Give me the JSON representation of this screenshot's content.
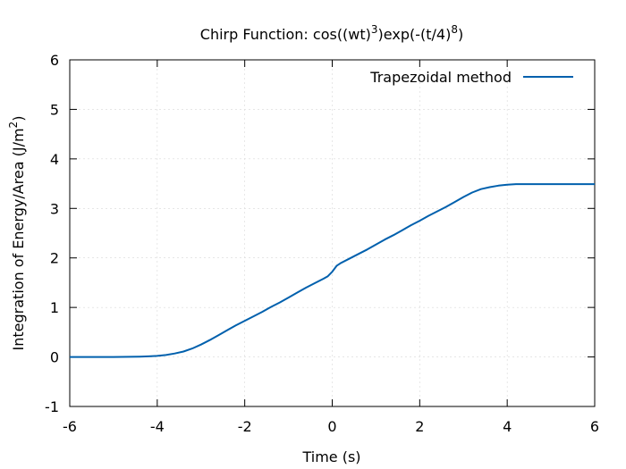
{
  "chart_data": {
    "type": "line",
    "title_parts": {
      "base1": "Chirp Function: cos((wt)",
      "sup1": "3",
      "base2": ")exp(-(t/4)",
      "sup2": "8",
      "base3": ")"
    },
    "xlabel": "Time (s)",
    "ylabel_parts": {
      "base": "Integration of Energy/Area (J/m",
      "sup": "2",
      "end": ")"
    },
    "xlim": [
      -6,
      6
    ],
    "ylim": [
      -1,
      6
    ],
    "xticks": [
      -6,
      -4,
      -2,
      0,
      2,
      4,
      6
    ],
    "yticks": [
      -1,
      0,
      1,
      2,
      3,
      4,
      5,
      6
    ],
    "xtick_labels": [
      "-6",
      "-4",
      "-2",
      "0",
      "2",
      "4",
      "6"
    ],
    "ytick_labels": [
      "-1",
      "0",
      "1",
      "2",
      "3",
      "4",
      "5",
      "6"
    ],
    "grid": true,
    "legend_position": "top-right",
    "series_color": "#0060ad",
    "series": [
      {
        "name": "Trapezoidal method",
        "x": [
          -6,
          -5.5,
          -5,
          -4.8,
          -4.6,
          -4.4,
          -4.2,
          -4.0,
          -3.8,
          -3.6,
          -3.4,
          -3.2,
          -3.0,
          -2.8,
          -2.6,
          -2.4,
          -2.2,
          -2.0,
          -1.8,
          -1.6,
          -1.4,
          -1.2,
          -1.0,
          -0.8,
          -0.6,
          -0.4,
          -0.2,
          -0.1,
          0.0,
          0.1,
          0.2,
          0.4,
          0.6,
          0.8,
          1.0,
          1.2,
          1.4,
          1.6,
          1.8,
          2.0,
          2.2,
          2.4,
          2.6,
          2.8,
          3.0,
          3.2,
          3.4,
          3.6,
          3.8,
          4.0,
          4.2,
          4.5,
          5.0,
          5.5,
          6.0
        ],
        "y": [
          0,
          0,
          0,
          0.001,
          0.003,
          0.006,
          0.012,
          0.022,
          0.04,
          0.07,
          0.11,
          0.17,
          0.25,
          0.34,
          0.44,
          0.54,
          0.64,
          0.73,
          0.82,
          0.91,
          1.01,
          1.1,
          1.2,
          1.3,
          1.4,
          1.49,
          1.58,
          1.63,
          1.72,
          1.84,
          1.9,
          1.99,
          2.08,
          2.17,
          2.27,
          2.37,
          2.46,
          2.56,
          2.66,
          2.75,
          2.85,
          2.94,
          3.03,
          3.13,
          3.23,
          3.32,
          3.39,
          3.43,
          3.46,
          3.48,
          3.49,
          3.49,
          3.49,
          3.49,
          3.49
        ]
      }
    ]
  }
}
